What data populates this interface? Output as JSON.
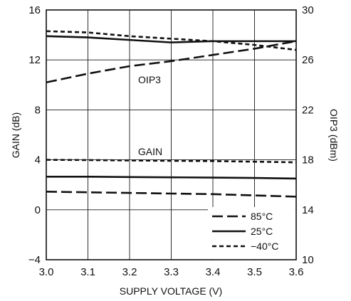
{
  "chart_data": {
    "type": "line",
    "x": [
      3.0,
      3.1,
      3.2,
      3.3,
      3.4,
      3.5,
      3.6
    ],
    "xlabel": "SUPPLY VOLTAGE (V)",
    "ylabel_left": "GAIN (dB)",
    "ylabel_right": "OIP3 (dBm)",
    "xlim": [
      3.0,
      3.6
    ],
    "ylim_left": [
      -4,
      16
    ],
    "ylim_right": [
      10,
      30
    ],
    "x_ticks": [
      "3.0",
      "3.1",
      "3.2",
      "3.3",
      "3.4",
      "3.5",
      "3.6"
    ],
    "y_ticks_left": [
      "−4",
      "0",
      "4",
      "8",
      "12",
      "16"
    ],
    "y_ticks_right": [
      "10",
      "14",
      "18",
      "22",
      "26",
      "30"
    ],
    "grid": true,
    "legend_position": "bottom-right",
    "annotations": [
      "OIP3",
      "GAIN"
    ],
    "series": [
      {
        "name": "85°C",
        "group": "OIP3",
        "axis": "right",
        "style": "long-dash",
        "values": [
          24.2,
          24.9,
          25.5,
          25.9,
          26.4,
          26.9,
          27.5
        ]
      },
      {
        "name": "25°C",
        "group": "OIP3",
        "axis": "right",
        "style": "solid",
        "values": [
          27.9,
          27.8,
          27.6,
          27.4,
          27.5,
          27.5,
          27.5
        ]
      },
      {
        "name": "−40°C",
        "group": "OIP3",
        "axis": "right",
        "style": "short-dash",
        "values": [
          28.3,
          28.2,
          27.9,
          27.7,
          27.5,
          27.2,
          26.8
        ]
      },
      {
        "name": "85°C",
        "group": "GAIN",
        "axis": "left",
        "style": "long-dash",
        "values": [
          1.45,
          1.4,
          1.35,
          1.3,
          1.25,
          1.15,
          1.05
        ]
      },
      {
        "name": "25°C",
        "group": "GAIN",
        "axis": "left",
        "style": "solid",
        "values": [
          2.65,
          2.65,
          2.62,
          2.6,
          2.58,
          2.55,
          2.5
        ]
      },
      {
        "name": "−40°C",
        "group": "GAIN",
        "axis": "left",
        "style": "short-dash",
        "values": [
          4.0,
          3.98,
          3.95,
          3.92,
          3.9,
          3.85,
          3.8
        ]
      }
    ],
    "legend": [
      "85°C",
      "25°C",
      "−40°C"
    ]
  }
}
